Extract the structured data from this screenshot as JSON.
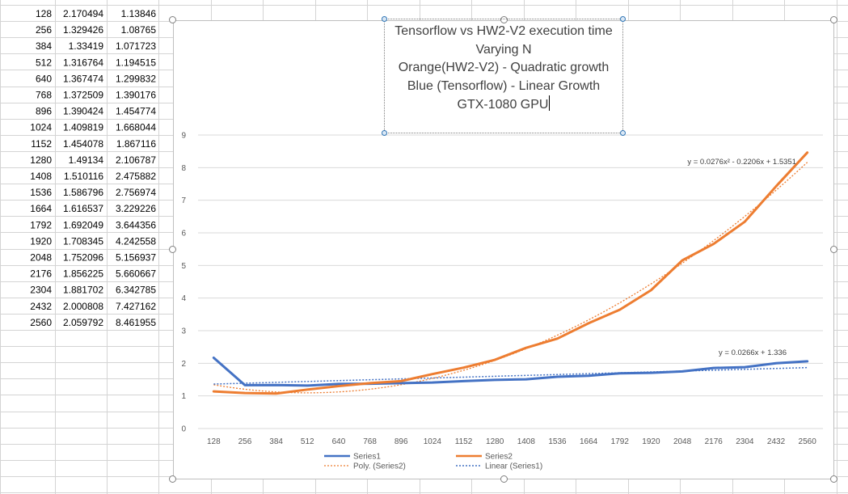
{
  "spreadsheet": {
    "rows": [
      [
        "128",
        "2.170494",
        "1.13846"
      ],
      [
        "256",
        "1.329426",
        "1.08765"
      ],
      [
        "384",
        "1.33419",
        "1.071723"
      ],
      [
        "512",
        "1.316764",
        "1.194515"
      ],
      [
        "640",
        "1.367474",
        "1.299832"
      ],
      [
        "768",
        "1.372509",
        "1.390176"
      ],
      [
        "896",
        "1.390424",
        "1.454774"
      ],
      [
        "1024",
        "1.409819",
        "1.668044"
      ],
      [
        "1152",
        "1.454078",
        "1.867116"
      ],
      [
        "1280",
        "1.49134",
        "2.106787"
      ],
      [
        "1408",
        "1.510116",
        "2.475882"
      ],
      [
        "1536",
        "1.586796",
        "2.756974"
      ],
      [
        "1664",
        "1.616537",
        "3.229226"
      ],
      [
        "1792",
        "1.692049",
        "3.644356"
      ],
      [
        "1920",
        "1.708345",
        "4.242558"
      ],
      [
        "2048",
        "1.752096",
        "5.156937"
      ],
      [
        "2176",
        "1.856225",
        "5.660667"
      ],
      [
        "2304",
        "1.881702",
        "6.342785"
      ],
      [
        "2432",
        "2.000808",
        "7.427162"
      ],
      [
        "2560",
        "2.059792",
        "8.461955"
      ]
    ]
  },
  "chart_data": {
    "type": "line",
    "title_lines": [
      "Tensorflow vs HW2-V2 execution time",
      "Varying N",
      "Orange(HW2-V2) - Quadratic growth",
      "Blue (Tensorflow) - Linear Growth",
      "GTX-1080 GPU"
    ],
    "categories": [
      "128",
      "256",
      "384",
      "512",
      "640",
      "768",
      "896",
      "1024",
      "1152",
      "1280",
      "1408",
      "1536",
      "1664",
      "1792",
      "1920",
      "2048",
      "2176",
      "2304",
      "2432",
      "2560"
    ],
    "y_ticks": [
      "0",
      "1",
      "2",
      "3",
      "4",
      "5",
      "6",
      "7",
      "8",
      "9"
    ],
    "ylim": [
      0,
      9
    ],
    "grid": true,
    "legend_position": "bottom",
    "series": [
      {
        "name": "Series1",
        "color": "#4472c4",
        "values": [
          2.170494,
          1.329426,
          1.33419,
          1.316764,
          1.367474,
          1.372509,
          1.390424,
          1.409819,
          1.454078,
          1.49134,
          1.510116,
          1.586796,
          1.616537,
          1.692049,
          1.708345,
          1.752096,
          1.856225,
          1.881702,
          2.000808,
          2.059792
        ]
      },
      {
        "name": "Series2",
        "color": "#ed7d31",
        "values": [
          1.13846,
          1.08765,
          1.071723,
          1.194515,
          1.299832,
          1.390176,
          1.454774,
          1.668044,
          1.867116,
          2.106787,
          2.475882,
          2.756974,
          3.229226,
          3.644356,
          4.242558,
          5.156937,
          5.660667,
          6.342785,
          7.427162,
          8.461955
        ]
      }
    ],
    "trendlines": [
      {
        "name": "Poly. (Series2)",
        "kind": "polynomial",
        "color": "#ed7d31",
        "coefficients": [
          0.0276,
          -0.2206,
          1.5351
        ],
        "equation": "y = 0.0276x² - 0.2206x + 1.5351"
      },
      {
        "name": "Linear (Series1)",
        "kind": "linear",
        "color": "#4472c4",
        "coefficients": [
          0.0266,
          1.336
        ],
        "equation": "y = 0.0266x + 1.336"
      }
    ]
  }
}
